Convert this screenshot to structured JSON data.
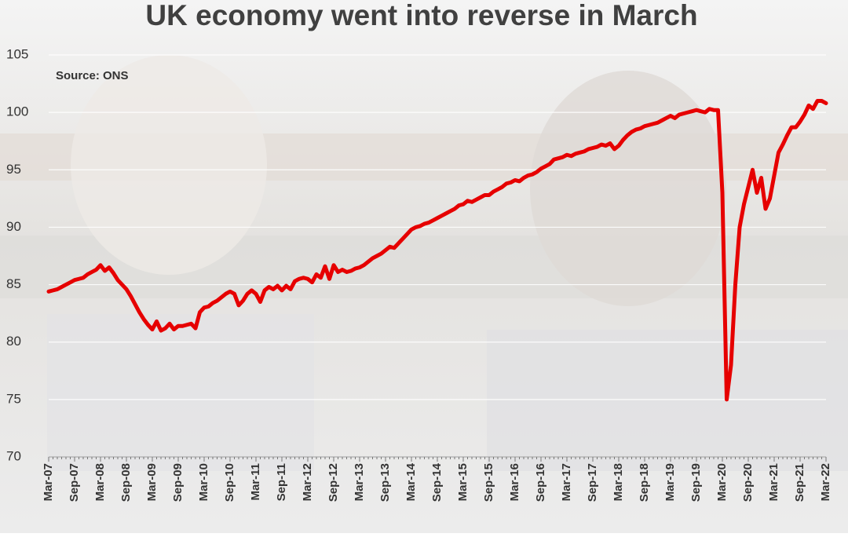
{
  "chart_data": {
    "type": "line",
    "title": "UK economy went into reverse in March",
    "annotation": "Source: ONS",
    "categories": [
      "Mar-07",
      null,
      null,
      null,
      null,
      null,
      "Sep-07",
      null,
      null,
      null,
      null,
      null,
      "Mar-08",
      null,
      null,
      null,
      null,
      null,
      "Sep-08",
      null,
      null,
      null,
      null,
      null,
      "Mar-09",
      null,
      null,
      null,
      null,
      null,
      "Sep-09",
      null,
      null,
      null,
      null,
      null,
      "Mar-10",
      null,
      null,
      null,
      null,
      null,
      "Sep-10",
      null,
      null,
      null,
      null,
      null,
      "Mar-11",
      null,
      null,
      null,
      null,
      null,
      "Sep-11",
      null,
      null,
      null,
      null,
      null,
      "Mar-12",
      null,
      null,
      null,
      null,
      null,
      "Sep-12",
      null,
      null,
      null,
      null,
      null,
      "Mar-13",
      null,
      null,
      null,
      null,
      null,
      "Sep-13",
      null,
      null,
      null,
      null,
      null,
      "Mar-14",
      null,
      null,
      null,
      null,
      null,
      "Sep-14",
      null,
      null,
      null,
      null,
      null,
      "Mar-15",
      null,
      null,
      null,
      null,
      null,
      "Sep-15",
      null,
      null,
      null,
      null,
      null,
      "Mar-16",
      null,
      null,
      null,
      null,
      null,
      "Sep-16",
      null,
      null,
      null,
      null,
      null,
      "Mar-17",
      null,
      null,
      null,
      null,
      null,
      "Sep-17",
      null,
      null,
      null,
      null,
      null,
      "Mar-18",
      null,
      null,
      null,
      null,
      null,
      "Sep-18",
      null,
      null,
      null,
      null,
      null,
      "Mar-19",
      null,
      null,
      null,
      null,
      null,
      "Sep-19",
      null,
      null,
      null,
      null,
      null,
      "Mar-20",
      null,
      null,
      null,
      null,
      null,
      "Sep-20",
      null,
      null,
      null,
      null,
      null,
      "Mar-21",
      null,
      null,
      null,
      null,
      null,
      "Sep-21",
      null,
      null,
      null,
      null,
      null,
      "Mar-22"
    ],
    "series": [
      {
        "color": "#e60000",
        "values": [
          84.4,
          84.5,
          84.6,
          84.8,
          85.0,
          85.2,
          85.4,
          85.5,
          85.6,
          85.9,
          86.1,
          86.3,
          86.7,
          86.2,
          86.5,
          86.0,
          85.4,
          85.0,
          84.6,
          84.0,
          83.3,
          82.6,
          82.0,
          81.5,
          81.1,
          81.8,
          81.0,
          81.2,
          81.6,
          81.1,
          81.4,
          81.4,
          81.5,
          81.6,
          81.2,
          82.6,
          83.0,
          83.1,
          83.4,
          83.6,
          83.9,
          84.2,
          84.4,
          84.2,
          83.2,
          83.6,
          84.2,
          84.5,
          84.2,
          83.5,
          84.5,
          84.8,
          84.6,
          84.9,
          84.5,
          84.9,
          84.6,
          85.3,
          85.5,
          85.6,
          85.5,
          85.2,
          85.9,
          85.6,
          86.6,
          85.5,
          86.7,
          86.1,
          86.3,
          86.1,
          86.2,
          86.4,
          86.5,
          86.7,
          87.0,
          87.3,
          87.5,
          87.7,
          88.0,
          88.3,
          88.2,
          88.6,
          89.0,
          89.4,
          89.8,
          90.0,
          90.1,
          90.3,
          90.4,
          90.6,
          90.8,
          91.0,
          91.2,
          91.4,
          91.6,
          91.9,
          92.0,
          92.3,
          92.2,
          92.4,
          92.6,
          92.8,
          92.8,
          93.1,
          93.3,
          93.5,
          93.8,
          93.9,
          94.1,
          94.0,
          94.3,
          94.5,
          94.6,
          94.8,
          95.1,
          95.3,
          95.5,
          95.9,
          96.0,
          96.1,
          96.3,
          96.2,
          96.4,
          96.5,
          96.6,
          96.8,
          96.9,
          97.0,
          97.2,
          97.1,
          97.3,
          96.8,
          97.1,
          97.6,
          98.0,
          98.3,
          98.5,
          98.6,
          98.8,
          98.9,
          99.0,
          99.1,
          99.3,
          99.5,
          99.7,
          99.5,
          99.8,
          99.9,
          100.0,
          100.1,
          100.2,
          100.1,
          100.0,
          100.3,
          100.2,
          100.2,
          93.0,
          75.0,
          78.0,
          85.0,
          90.0,
          92.0,
          93.5,
          95.0,
          93.0,
          94.3,
          91.6,
          92.5,
          94.5,
          96.5,
          97.2,
          98.0,
          98.7,
          98.7,
          99.2,
          99.8,
          100.6,
          100.3,
          101.0,
          101.0,
          100.8
        ]
      }
    ],
    "ylim": [
      70,
      105
    ],
    "yticks": [
      70,
      75,
      80,
      85,
      90,
      95,
      100,
      105
    ],
    "grid": true
  }
}
